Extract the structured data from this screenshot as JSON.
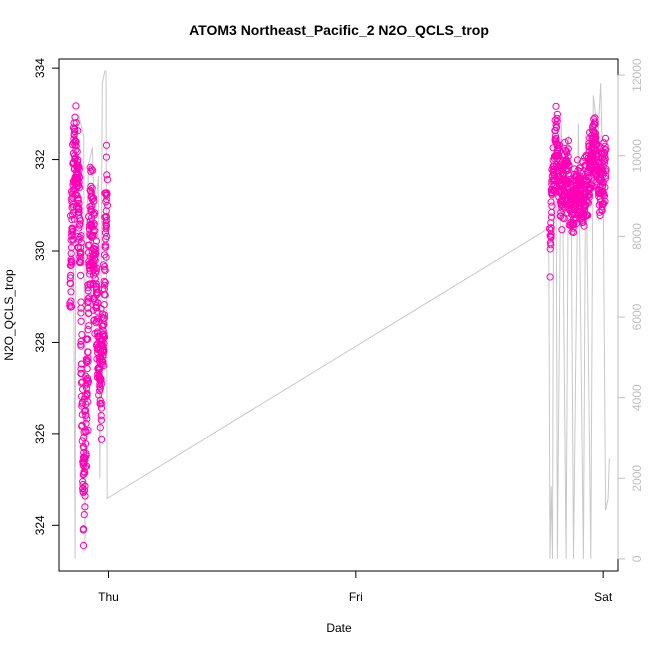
{
  "chart_data": {
    "type": "scatter",
    "title": "ATOM3 Northeast_Pacific_2 N2O_QCLS_trop",
    "xlabel": "Date",
    "ylabel": "N2O_QCLS_trop",
    "x_tick_labels": [
      "Thu",
      "Fri",
      "Sat"
    ],
    "x_tick_positions": [
      1.0,
      2.0,
      3.0
    ],
    "xlim": [
      0.8,
      3.06
    ],
    "ylim": [
      323.0,
      334.2
    ],
    "y_ticks": [
      324,
      326,
      328,
      330,
      332,
      334
    ],
    "y2_ticks": [
      0,
      2000,
      4000,
      6000,
      8000,
      10000,
      12000
    ],
    "y2lim": [
      -300,
      12400
    ],
    "colors": {
      "points": "#ff00b4",
      "altitude_line": "#c8c8c8",
      "y2_axis": "#bfbfbf"
    },
    "series": [
      {
        "marker": "open-circle",
        "segments": [
          {
            "x_start": 0.845,
            "x_end": 0.995,
            "seed": 11,
            "count": 520,
            "profile": [
              [
                0,
                329.0
              ],
              [
                0.05,
                330.5
              ],
              [
                0.1,
                332.3
              ],
              [
                0.2,
                331.5
              ],
              [
                0.28,
                330.0
              ],
              [
                0.35,
                324.5
              ],
              [
                0.45,
                327.0
              ],
              [
                0.55,
                331.0
              ],
              [
                0.62,
                330.2
              ],
              [
                0.7,
                329.0
              ],
              [
                0.8,
                327.0
              ],
              [
                0.9,
                328.5
              ],
              [
                1.0,
                331.5
              ]
            ],
            "noise": 0.9
          },
          {
            "x_start": 2.785,
            "x_end": 3.01,
            "seed": 23,
            "count": 560,
            "profile": [
              [
                0,
                329.8
              ],
              [
                0.04,
                331.5
              ],
              [
                0.12,
                332.5
              ],
              [
                0.2,
                331.2
              ],
              [
                0.3,
                331.8
              ],
              [
                0.4,
                330.8
              ],
              [
                0.5,
                331.5
              ],
              [
                0.6,
                331.0
              ],
              [
                0.7,
                331.6
              ],
              [
                0.8,
                332.4
              ],
              [
                0.9,
                331.3
              ],
              [
                1.0,
                331.8
              ]
            ],
            "noise": 0.55
          }
        ]
      },
      {
        "role": "altitude",
        "axis": "y2",
        "points": [
          [
            0.845,
            7200
          ],
          [
            0.85,
            8000
          ],
          [
            0.855,
            7500
          ],
          [
            0.86,
            6800
          ],
          [
            0.865,
            0
          ],
          [
            0.868,
            9500
          ],
          [
            0.875,
            10800
          ],
          [
            0.88,
            11000
          ],
          [
            0.9,
            10500
          ],
          [
            0.905,
            200
          ],
          [
            0.91,
            8000
          ],
          [
            0.92,
            9800
          ],
          [
            0.935,
            10200
          ],
          [
            0.94,
            9000
          ],
          [
            0.945,
            8500
          ],
          [
            0.96,
            9500
          ],
          [
            0.965,
            2000
          ],
          [
            0.975,
            11800
          ],
          [
            0.985,
            12100
          ],
          [
            0.99,
            12100
          ],
          [
            0.995,
            1500
          ],
          [
            2.78,
            8200
          ],
          [
            2.785,
            0
          ],
          [
            2.79,
            1800
          ],
          [
            2.795,
            0
          ],
          [
            2.8,
            10200
          ],
          [
            2.81,
            9000
          ],
          [
            2.815,
            0
          ],
          [
            2.83,
            10800
          ],
          [
            2.835,
            10000
          ],
          [
            2.85,
            0
          ],
          [
            2.86,
            10500
          ],
          [
            2.87,
            9500
          ],
          [
            2.88,
            0
          ],
          [
            2.9,
            10800
          ],
          [
            2.92,
            0
          ],
          [
            2.93,
            10500
          ],
          [
            2.95,
            0
          ],
          [
            2.96,
            11500
          ],
          [
            2.97,
            11000
          ],
          [
            2.98,
            10600
          ],
          [
            2.99,
            11800
          ],
          [
            2.995,
            10500
          ],
          [
            3.0,
            9000
          ],
          [
            3.01,
            1200
          ],
          [
            3.02,
            1500
          ],
          [
            3.025,
            2500
          ]
        ]
      }
    ]
  }
}
